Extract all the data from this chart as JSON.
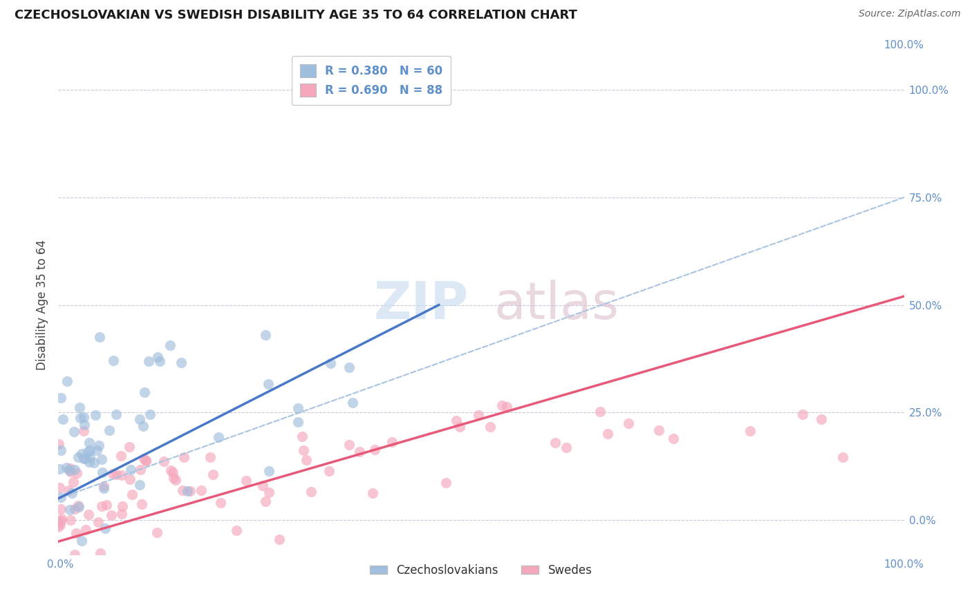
{
  "title": "CZECHOSLOVAKIAN VS SWEDISH DISABILITY AGE 35 TO 64 CORRELATION CHART",
  "source": "Source: ZipAtlas.com",
  "ylabel": "Disability Age 35 to 64",
  "xlim": [
    0,
    100
  ],
  "ylim": [
    -8,
    108
  ],
  "y_tick_positions": [
    0,
    25,
    50,
    75,
    100
  ],
  "y_tick_labels": [
    "0.0%",
    "25.0%",
    "50.0%",
    "75.0%",
    "100.0%"
  ],
  "blue_label": "R = 0.380   N = 60",
  "pink_label": "R = 0.690   N = 88",
  "blue_scatter_color": "#a0bedd",
  "pink_scatter_color": "#f5a8bc",
  "blue_line_color": "#4878c8",
  "blue_dash_color": "#a8c4e0",
  "pink_line_color": "#e85878",
  "tick_color": "#6090c8",
  "legend_bottom_labels": [
    "Czechoslovakians",
    "Swedes"
  ],
  "background_color": "#ffffff",
  "grid_color": "#c8c8d8",
  "watermark_zip_color": "#c0d8ee",
  "watermark_atlas_color": "#d8b8c8",
  "blue_line_x0": 0,
  "blue_line_y0": 5,
  "blue_line_x1": 45,
  "blue_line_y1": 50,
  "blue_dash_x0": 0,
  "blue_dash_y0": 5,
  "blue_dash_x1": 100,
  "blue_dash_y1": 75,
  "pink_line_x0": 0,
  "pink_line_y0": -5,
  "pink_line_x1": 100,
  "pink_line_y1": 52
}
